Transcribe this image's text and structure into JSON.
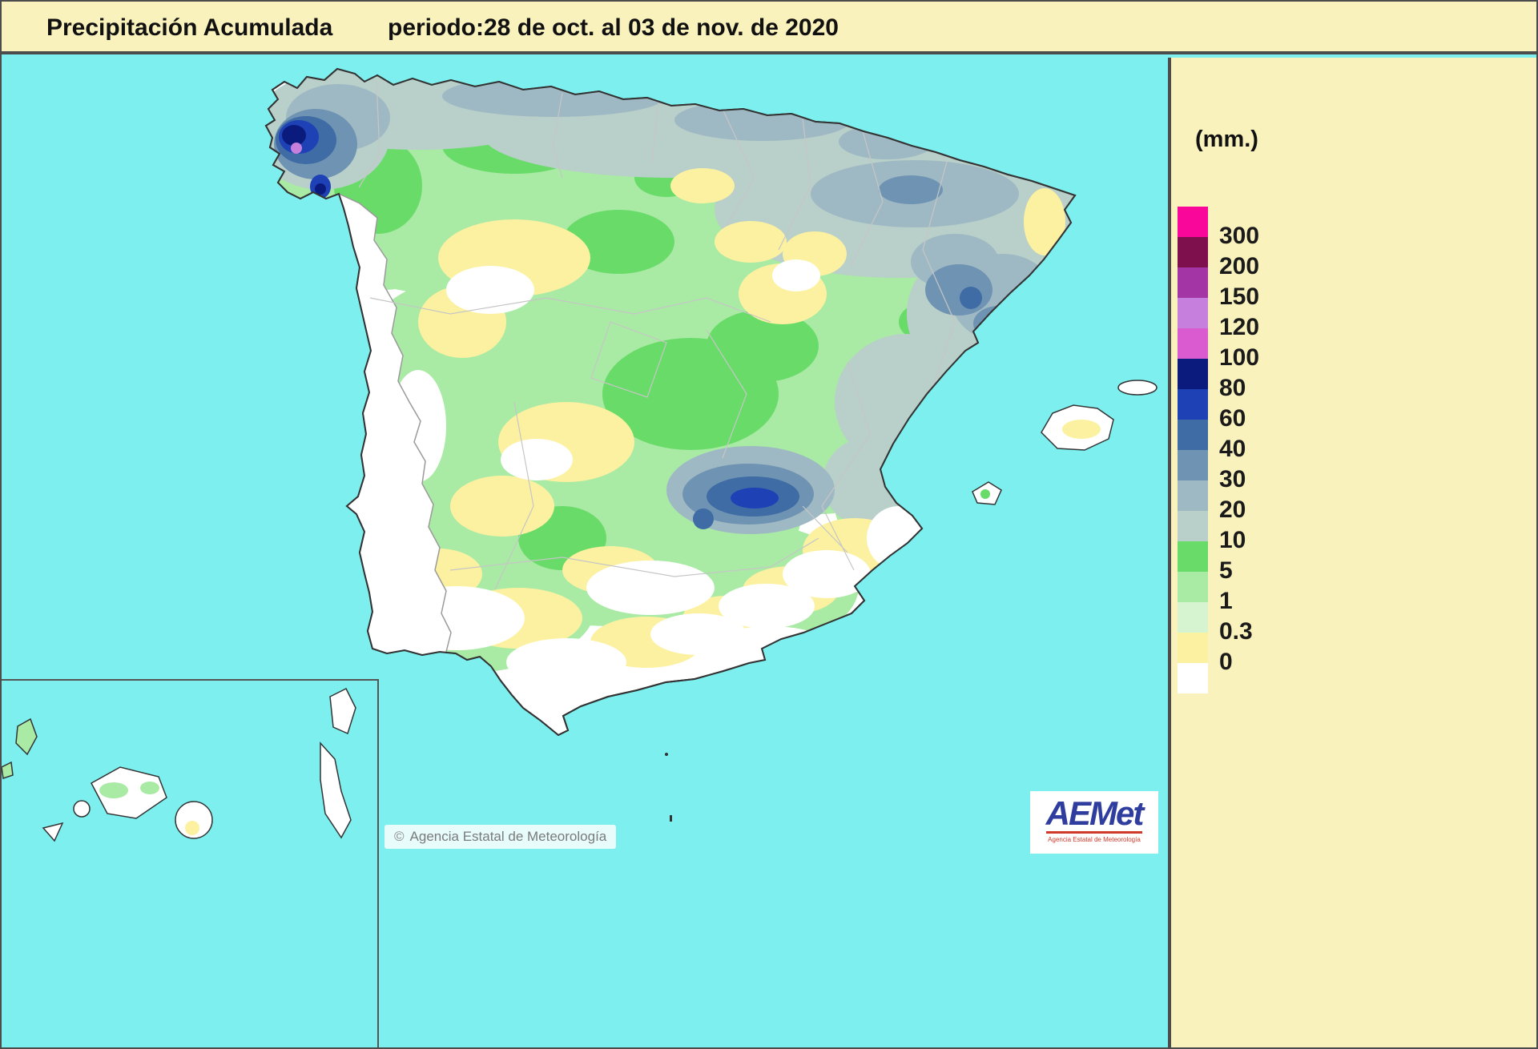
{
  "header": {
    "title": "Precipitación Acumulada",
    "period": "periodo:28 de oct. al 03 de nov. de 2020"
  },
  "legend": {
    "unit_label": "(mm.)",
    "levels": [
      {
        "label": "300",
        "color": "#F9079B"
      },
      {
        "label": "200",
        "color": "#7E104E"
      },
      {
        "label": "150",
        "color": "#A435A4"
      },
      {
        "label": "120",
        "color": "#C77FDD"
      },
      {
        "label": "100",
        "color": "#DA5BD0"
      },
      {
        "label": "80",
        "color": "#0A1B7D"
      },
      {
        "label": "60",
        "color": "#1E41B5"
      },
      {
        "label": "40",
        "color": "#3F6CA5"
      },
      {
        "label": "30",
        "color": "#6F93B2"
      },
      {
        "label": "20",
        "color": "#9FB9C4"
      },
      {
        "label": "10",
        "color": "#B9CFC9"
      },
      {
        "label": "5",
        "color": "#69DB69"
      },
      {
        "label": "1",
        "color": "#A9EAA4"
      },
      {
        "label": "0.3",
        "color": "#D5F4CF"
      },
      {
        "label": "0",
        "color": "#FBF1A0"
      }
    ],
    "base_color": "#FFFFFF"
  },
  "map": {
    "sea_color": "#7EEFEF",
    "land_base_color": "#FFFFFF",
    "outline_color": "#333333"
  },
  "footer": {
    "symbol": "©",
    "text": "Agencia Estatal de Meteorología"
  },
  "logo": {
    "text": "AEMet",
    "subtext": "Agencia Estatal de Meteorología"
  }
}
